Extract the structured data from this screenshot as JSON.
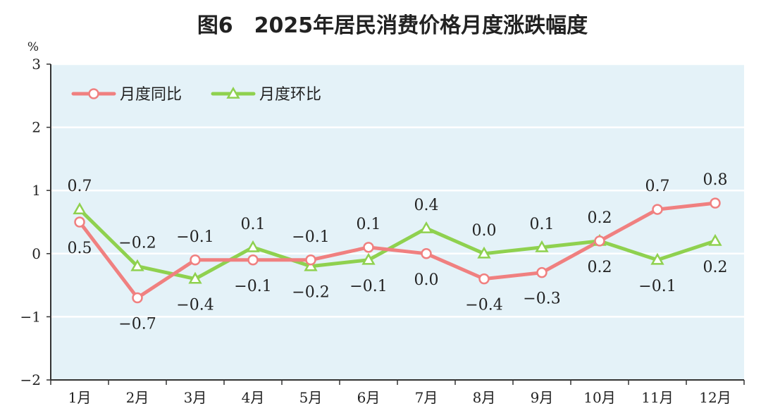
{
  "chart_data": {
    "type": "line",
    "title": "图6　2025年居民消费价格月度涨跌幅度",
    "ylabel": "%",
    "ylim": [
      -2,
      3
    ],
    "yticks": [
      "-2",
      "-1",
      "0",
      "1",
      "2",
      "3"
    ],
    "categories": [
      "1月",
      "2月",
      "3月",
      "4月",
      "5月",
      "6月",
      "7月",
      "8月",
      "9月",
      "10月",
      "11月",
      "12月"
    ],
    "grid": true,
    "legend_position": "top-left",
    "series": [
      {
        "name": "月度同比",
        "color": "#f08080",
        "marker": "circle",
        "values": [
          0.5,
          -0.7,
          -0.1,
          -0.1,
          -0.1,
          0.1,
          0.0,
          -0.4,
          -0.3,
          0.2,
          0.7,
          0.8
        ],
        "labels": [
          "0.5",
          "-0.7",
          "-0.1",
          "-0.1",
          "-0.1",
          "0.1",
          "0.0",
          "-0.4",
          "-0.3",
          "0.2",
          "0.7",
          "0.8"
        ]
      },
      {
        "name": "月度环比",
        "color": "#8fd14f",
        "marker": "triangle",
        "values": [
          0.7,
          -0.2,
          -0.4,
          0.1,
          -0.2,
          -0.1,
          0.4,
          0.0,
          0.1,
          0.2,
          -0.1,
          0.2
        ],
        "labels": [
          "0.7",
          "-0.2",
          "-0.4",
          "0.1",
          "-0.2",
          "-0.1",
          "0.4",
          "0.0",
          "0.1",
          "0.2",
          "-0.1",
          "0.2"
        ]
      }
    ]
  }
}
